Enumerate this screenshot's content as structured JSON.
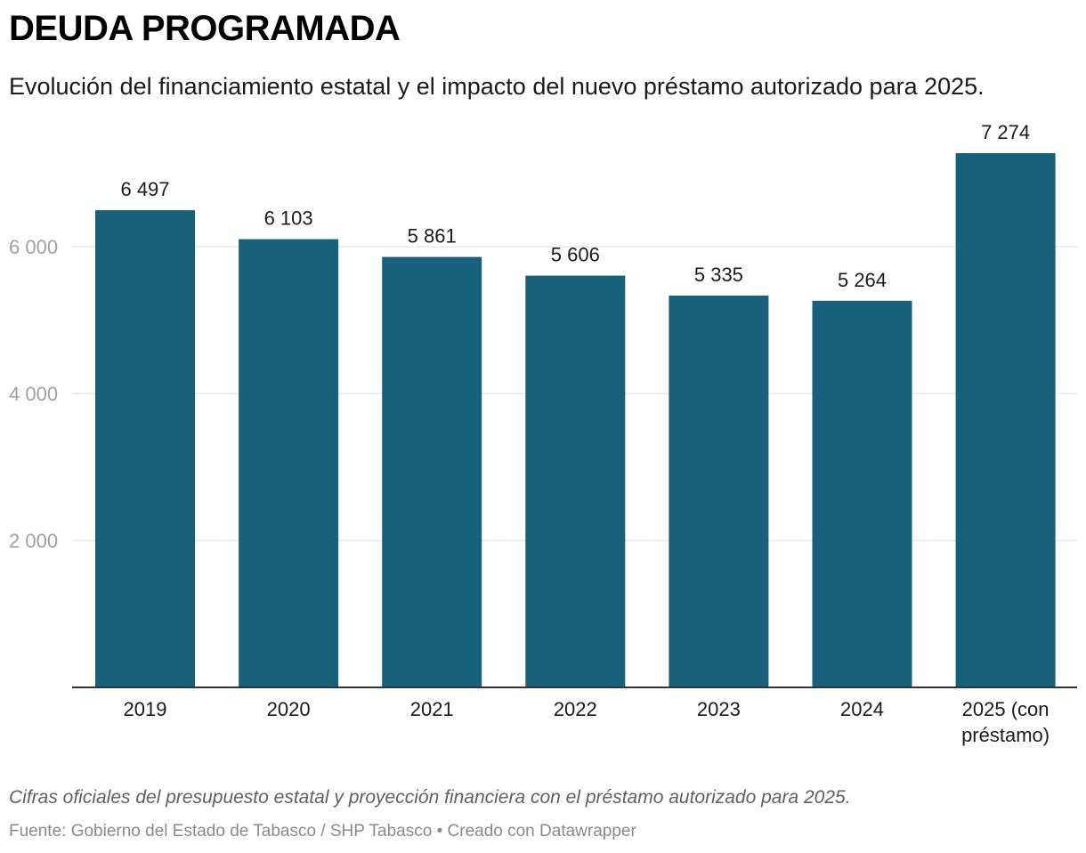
{
  "header": {
    "title": "DEUDA PROGRAMADA",
    "subtitle": "Evolución del financiamiento estatal y el impacto del nuevo préstamo autorizado para 2025."
  },
  "footer": {
    "note": "Cifras oficiales del presupuesto estatal y proyección financiera con el préstamo autorizado para 2025.",
    "source": "Fuente: Gobierno del Estado de Tabasco / SHP Tabasco • Creado con Datawrapper"
  },
  "chart_data": {
    "type": "bar",
    "categories": [
      "2019",
      "2020",
      "2021",
      "2022",
      "2023",
      "2024",
      "2025 (con préstamo)"
    ],
    "category_lines": [
      [
        "2019"
      ],
      [
        "2020"
      ],
      [
        "2021"
      ],
      [
        "2022"
      ],
      [
        "2023"
      ],
      [
        "2024"
      ],
      [
        "2025 (con",
        "préstamo)"
      ]
    ],
    "values": [
      6497,
      6103,
      5861,
      5606,
      5335,
      5264,
      7274
    ],
    "value_labels": [
      "6 497",
      "6 103",
      "5 861",
      "5 606",
      "5 335",
      "5 264",
      "7 274"
    ],
    "yticks": [
      2000,
      4000,
      6000
    ],
    "ytick_labels": [
      "2 000",
      "4 000",
      "6 000"
    ],
    "ylim": [
      0,
      7274
    ],
    "grid": true,
    "bar_color": "#17617b",
    "title": "DEUDA PROGRAMADA",
    "xlabel": "",
    "ylabel": ""
  }
}
